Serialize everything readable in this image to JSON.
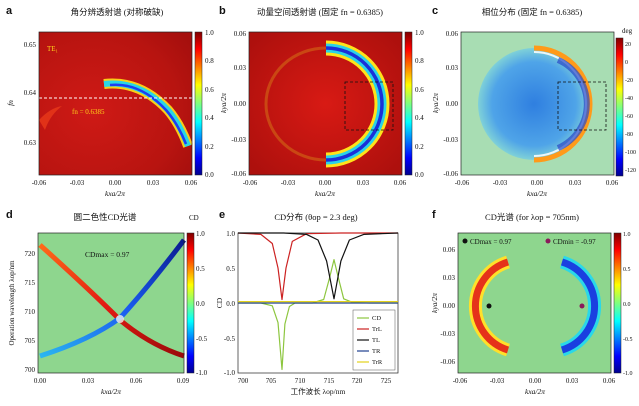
{
  "panels": [
    {
      "id": "a",
      "type": "heatmap",
      "title": "角分辨透射谱 (对称破缺)",
      "xlabel": "kxa/2π",
      "ylabel": "fn",
      "xticks": [
        "-0.06",
        "-0.03",
        "0.00",
        "0.03",
        "0.06"
      ],
      "yticks": [
        "0.65",
        "0.64",
        "0.63"
      ],
      "mode_label": "TE₁",
      "line_label": "fn = 0.6385",
      "cbar_ticks": [
        "1.0",
        "0.8",
        "0.6",
        "0.4",
        "0.2",
        "0.0"
      ]
    },
    {
      "id": "b",
      "type": "heatmap",
      "title": "动量空间透射谱 (固定 fn = 0.6385)",
      "xlabel": "kxa/2π",
      "ylabel": "kya/2π",
      "xticks": [
        "-0.06",
        "-0.03",
        "0.00",
        "0.03",
        "0.06"
      ],
      "yticks": [
        "0.06",
        "0.03",
        "0.00",
        "-0.03",
        "-0.06"
      ],
      "cbar_ticks": [
        "1.0",
        "0.8",
        "0.6",
        "0.4",
        "0.2",
        "0.0"
      ]
    },
    {
      "id": "c",
      "type": "heatmap",
      "title": "相位分布 (固定 fn = 0.6385)",
      "xlabel": "kxa/2π",
      "ylabel": "kya/2π",
      "xticks": [
        "-0.06",
        "-0.03",
        "0.00",
        "0.03",
        "0.06"
      ],
      "yticks": [
        "0.06",
        "0.03",
        "0.00",
        "-0.03",
        "-0.06"
      ],
      "cbar_unit": "deg",
      "cbar_ticks": [
        "20",
        "0",
        "-20",
        "-40",
        "-60",
        "-80",
        "-100",
        "-120"
      ]
    },
    {
      "id": "d",
      "type": "heatmap",
      "title": "圆二色性CD光谱",
      "xlabel": "kxa/2π",
      "ylabel": "Operation wavelength λop/nm",
      "xticks": [
        "0.00",
        "0.03",
        "0.06",
        "0.09"
      ],
      "yticks": [
        "720",
        "715",
        "710",
        "705",
        "700"
      ],
      "annotation": "CDmax = 0.97",
      "cbar_unit": "CD",
      "cbar_ticks": [
        "1.0",
        "0.5",
        "0.0",
        "-0.5",
        "-1.0"
      ]
    },
    {
      "id": "e",
      "type": "line",
      "title": "CD分布 (θop = 2.3 deg)",
      "xlabel": "工作波长 λop/nm",
      "ylabel": "CD",
      "xticks": [
        "700",
        "705",
        "710",
        "715",
        "720",
        "725"
      ],
      "yticks": [
        "1.0",
        "0.5",
        "0.0",
        "-0.5",
        "-1.0"
      ],
      "xlim": [
        697,
        725
      ],
      "ylim": [
        -1.0,
        1.0
      ],
      "legend": [
        "CD",
        "TrL",
        "TL",
        "TR",
        "TrR"
      ],
      "series": [
        {
          "name": "CD",
          "color": "#8dc63f",
          "x": [
            697,
            701,
            703,
            704,
            704.7,
            705.2,
            706,
            707,
            710,
            712,
            713,
            713.8,
            714.5,
            715.5,
            717,
            720,
            725
          ],
          "y": [
            0,
            0,
            -0.04,
            -0.28,
            -0.95,
            -0.3,
            -0.05,
            0,
            0,
            0.05,
            0.35,
            0.62,
            0.38,
            0.06,
            0.01,
            0,
            0
          ]
        },
        {
          "name": "TrL",
          "color": "#cc2222",
          "x": [
            697,
            701,
            703,
            704,
            704.7,
            705.4,
            706.5,
            709,
            715,
            725
          ],
          "y": [
            1,
            0.98,
            0.85,
            0.5,
            0.05,
            0.5,
            0.88,
            0.99,
            1,
            1
          ]
        },
        {
          "name": "TL",
          "color": "#111111",
          "x": [
            697,
            705,
            709,
            711,
            712.5,
            713.8,
            715,
            716.5,
            719,
            725
          ],
          "y": [
            1,
            1,
            0.98,
            0.9,
            0.6,
            0.06,
            0.6,
            0.9,
            0.98,
            1
          ]
        },
        {
          "name": "TR",
          "color": "#1f3f8f",
          "x": [
            697,
            725
          ],
          "y": [
            0,
            0
          ]
        },
        {
          "name": "TrR",
          "color": "#e3d21a",
          "x": [
            697,
            725
          ],
          "y": [
            0.02,
            0.02
          ]
        }
      ]
    },
    {
      "id": "f",
      "type": "heatmap",
      "title": "CD光谱 (for λop = 705nm)",
      "xlabel": "kxa/2π",
      "ylabel": "kya/2π",
      "xticks": [
        "-0.06",
        "-0.03",
        "0.00",
        "0.03",
        "0.06"
      ],
      "yticks": [
        "0.06",
        "0.03",
        "0.00",
        "-0.03",
        "-0.06"
      ],
      "legend_left": "CDmax = 0.97",
      "legend_right": "CDmin = -0.97",
      "marker_left_color": "#111111",
      "marker_right_color": "#8a1a5a",
      "cbar_ticks": [
        "1.0",
        "0.5",
        "0.0",
        "-0.5",
        "-1.0"
      ]
    }
  ],
  "chart_data": [
    {
      "type": "heatmap",
      "panel": "a",
      "xrange": [
        -0.06,
        0.06
      ],
      "yrange": [
        0.625,
        0.655
      ],
      "fixed_fn": 0.6385,
      "mode": "TE1"
    },
    {
      "type": "heatmap",
      "panel": "b",
      "xrange": [
        -0.06,
        0.06
      ],
      "yrange": [
        -0.06,
        0.06
      ]
    },
    {
      "type": "heatmap",
      "panel": "c",
      "xrange": [
        -0.06,
        0.06
      ],
      "yrange": [
        -0.06,
        0.06
      ],
      "crange": [
        -130,
        20
      ]
    },
    {
      "type": "heatmap",
      "panel": "d",
      "xrange": [
        0,
        0.09
      ],
      "yrange": [
        700,
        722
      ],
      "crange": [
        -1,
        1
      ],
      "cd_max": 0.97
    },
    {
      "type": "line",
      "panel": "e",
      "xlim": [
        697,
        725
      ],
      "ylim": [
        -1,
        1
      ],
      "theta_op_deg": 2.3
    },
    {
      "type": "heatmap",
      "panel": "f",
      "xrange": [
        -0.06,
        0.06
      ],
      "yrange": [
        -0.06,
        0.06
      ],
      "crange": [
        -1,
        1
      ],
      "cd_max": 0.97,
      "cd_min": -0.97,
      "lambda_op_nm": 705
    }
  ]
}
